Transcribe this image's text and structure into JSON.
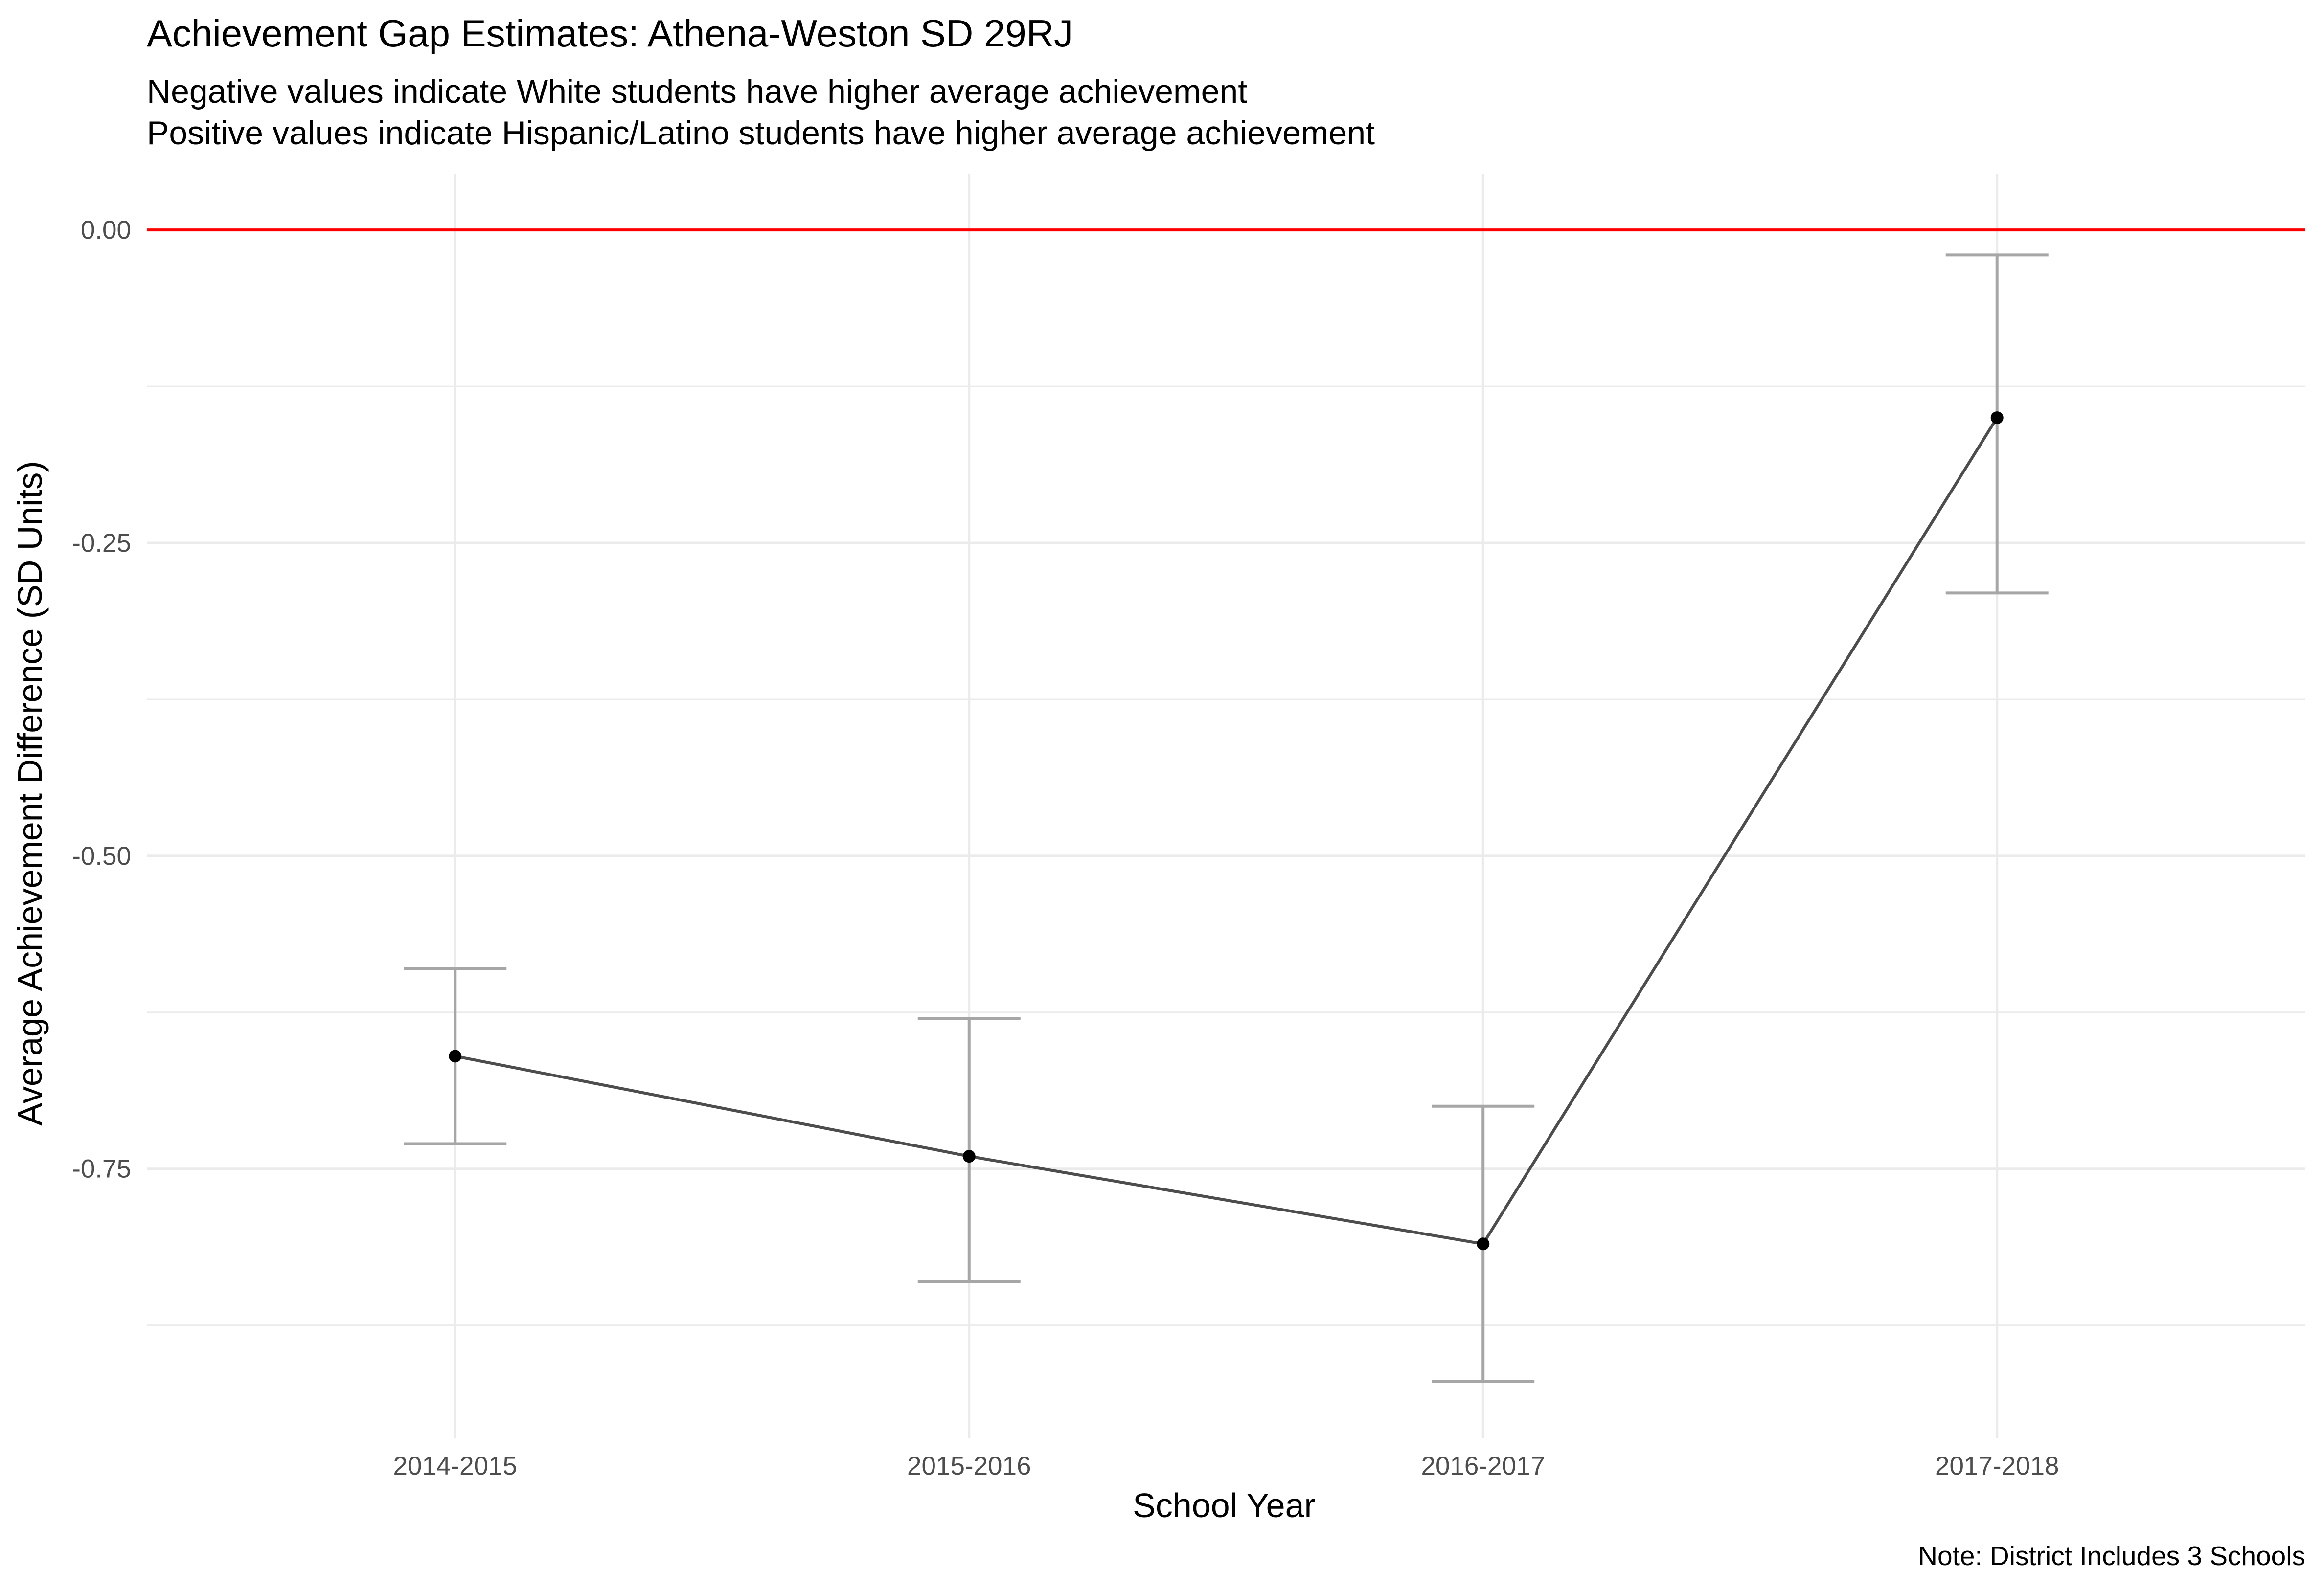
{
  "chart_data": {
    "type": "line",
    "title": "Achievement Gap Estimates: Athena-Weston SD 29RJ",
    "subtitle_lines": [
      "Negative values indicate White students have higher average achievement",
      "Positive values indicate Hispanic/Latino students have higher average achievement"
    ],
    "xlabel": "School Year",
    "ylabel": "Average Achievement Difference (SD Units)",
    "caption": "Note: District Includes 3 Schools",
    "categories": [
      "2014-2015",
      "2015-2016",
      "2016-2017",
      "2017-2018"
    ],
    "series": [
      {
        "values": [
          -0.66,
          -0.74,
          -0.81,
          -0.15
        ],
        "lower": [
          -0.73,
          -0.84,
          -0.92,
          -0.29
        ],
        "upper": [
          -0.59,
          -0.63,
          -0.7,
          -0.02
        ]
      }
    ],
    "reference_line": {
      "value": 0.0,
      "color": "#ff0000"
    },
    "ylim": [
      -0.965,
      0.045
    ],
    "y_ticks": [
      0.0,
      -0.25,
      -0.5,
      -0.75
    ],
    "y_tick_labels": [
      "0.00",
      "-0.25",
      "-0.50",
      "-0.75"
    ],
    "grid": true,
    "colors": {
      "line": "#4d4d4d",
      "point": "#000000",
      "errorbar": "#a6a6a6",
      "grid": "#ebebeb"
    }
  }
}
